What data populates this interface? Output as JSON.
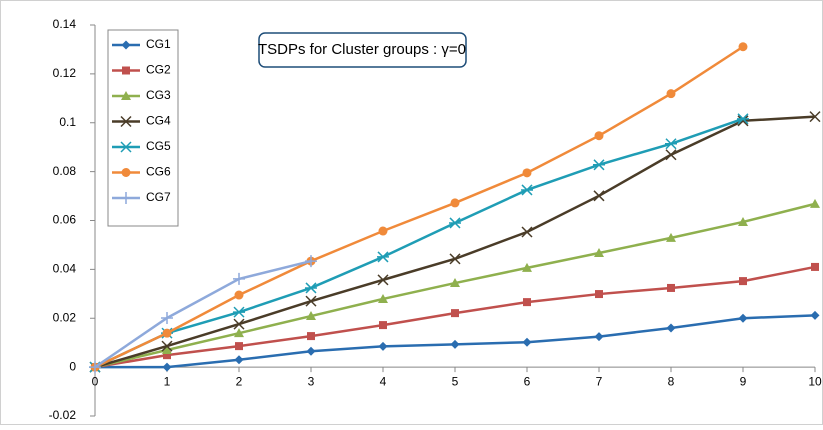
{
  "chart_data": {
    "type": "line",
    "title": "TSDPs for Cluster groups : γ=0",
    "x": [
      0,
      1,
      2,
      3,
      4,
      5,
      6,
      7,
      8,
      9,
      10
    ],
    "xlim": [
      0,
      10
    ],
    "xticks": [
      0,
      1,
      2,
      3,
      4,
      5,
      6,
      7,
      8,
      9,
      10
    ],
    "ylim": [
      -0.02,
      0.14
    ],
    "yticks": [
      -0.02,
      0,
      0.02,
      0.04,
      0.06,
      0.08,
      0.1,
      0.12,
      0.14
    ],
    "legend": "top-left",
    "series": [
      {
        "name": "CG1",
        "color": "#2a6db0",
        "marker": "diamond",
        "values": [
          0,
          0,
          0.003,
          0.0065,
          0.0085,
          0.0093,
          0.0102,
          0.0125,
          0.016,
          0.02,
          0.0212
        ]
      },
      {
        "name": "CG2",
        "color": "#c0504d",
        "marker": "square",
        "values": [
          0,
          0.0049,
          0.0086,
          0.0127,
          0.0172,
          0.0221,
          0.0266,
          0.0299,
          0.0324,
          0.0352,
          0.041
        ]
      },
      {
        "name": "CG3",
        "color": "#8fb04e",
        "marker": "triangle",
        "values": [
          0,
          0.007,
          0.0139,
          0.0209,
          0.0279,
          0.0344,
          0.0406,
          0.0467,
          0.0529,
          0.0594,
          0.0668
        ]
      },
      {
        "name": "CG4",
        "color": "#4a3c28",
        "marker": "x",
        "values": [
          0,
          0.0086,
          0.0176,
          0.027,
          0.0357,
          0.0443,
          0.0553,
          0.0701,
          0.0869,
          0.1008,
          0.1025
        ]
      },
      {
        "name": "CG5",
        "color": "#1f9db5",
        "marker": "star",
        "values": [
          0,
          0.0139,
          0.0225,
          0.0324,
          0.0451,
          0.059,
          0.0725,
          0.0828,
          0.0914,
          0.1016,
          null
        ]
      },
      {
        "name": "CG6",
        "color": "#f08a3a",
        "marker": "circle",
        "values": [
          0,
          0.0139,
          0.0295,
          0.0434,
          0.0557,
          0.0672,
          0.0795,
          0.0947,
          0.1119,
          0.1311,
          null
        ]
      },
      {
        "name": "CG7",
        "color": "#8ea9db",
        "marker": "plus",
        "values": [
          0,
          0.0201,
          0.0361,
          0.0434,
          null,
          null,
          null,
          null,
          null,
          null,
          null
        ]
      }
    ]
  }
}
